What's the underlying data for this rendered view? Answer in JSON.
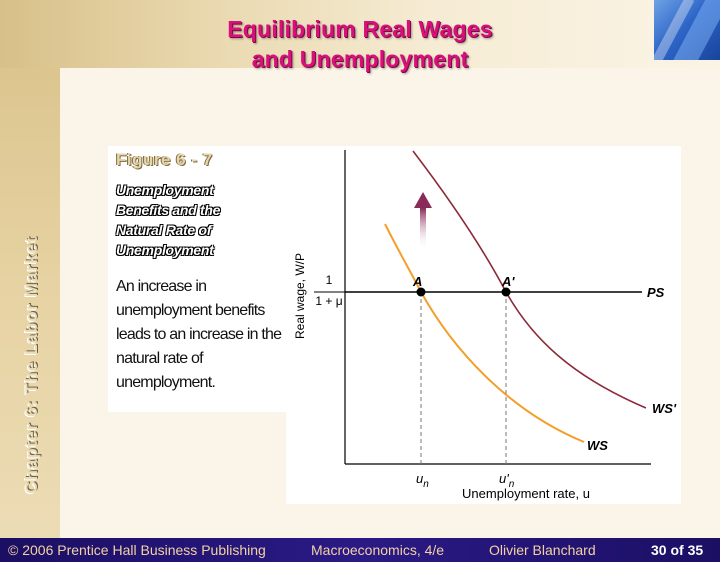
{
  "slide": {
    "title_line1": "Equilibrium Real Wages",
    "title_line2": "and Unemployment",
    "side_label": "Chapter 6: The Labor Market"
  },
  "figure": {
    "number": "Figure 6 - 7",
    "title": "Unemployment\nBenefits and the\nNatural Rate of\nUnemployment",
    "description": "An increase in unemployment benefits leads to an increase in the natural rate of unemployment."
  },
  "diagram": {
    "y_axis_label": "Real wage, W/P",
    "x_axis_label": "Unemployment rate, u",
    "ps_level_numerator": "1",
    "ps_level_denominator": "1 + μ",
    "curve_ps": "PS",
    "curve_ws": "WS",
    "curve_ws_new": "WS'",
    "point_a": "A",
    "point_a_new": "A'",
    "tick_un": "u",
    "tick_un_sub": "n",
    "tick_un_new": "u'",
    "tick_un_new_sub": "n",
    "colors": {
      "ws": "#f2a02b",
      "ws_new": "#8c2a3a",
      "ps": "#000000",
      "arrow": "#8a2b5a"
    }
  },
  "footer": {
    "copyright": "© 2006 Prentice Hall Business Publishing",
    "book": "Macroeconomics, 4/e",
    "author": "Olivier Blanchard",
    "page": "30 of 35"
  }
}
